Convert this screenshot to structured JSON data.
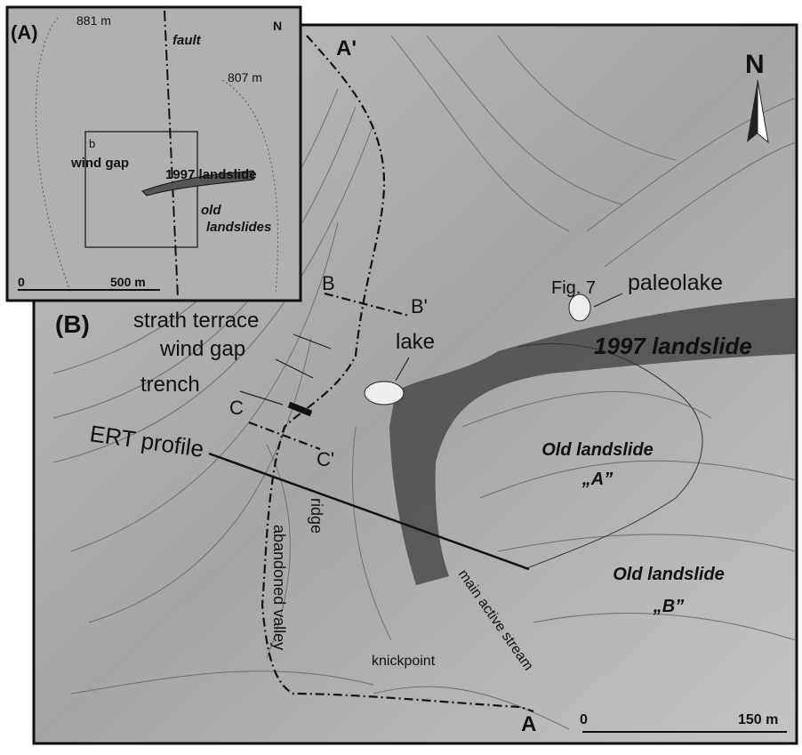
{
  "inset": {
    "panel_label": "(A)",
    "elevation_1": "881 m",
    "fault": "fault",
    "elevation_2": "807 m",
    "north": "N",
    "box_label": "b",
    "wind_gap": "wind gap",
    "landslide_1997": "1997 landslide",
    "old_landslides_1": "old",
    "old_landslides_2": "landslides",
    "scale_start": "0",
    "scale_end": "500 m"
  },
  "map": {
    "section_a_end": "A'",
    "north": "N",
    "section_b_start": "B",
    "section_b_end": "B'",
    "fig_ref": "Fig. 7",
    "paleolake": "paleolake",
    "panel_label": "(B)",
    "strath_terrace": "strath terrace",
    "wind_gap": "wind gap",
    "lake": "lake",
    "landslide_1997": "1997 landslide",
    "trench": "trench",
    "section_c_start": "C",
    "section_c_end": "C'",
    "ert_profile": "ERT profile",
    "old_landslide_a_1": "Old landslide",
    "old_landslide_a_2": "„A”",
    "ridge": "ridge",
    "abandoned_valley": "abandoned valley",
    "old_landslide_b_1": "Old landslide",
    "old_landslide_b_2": "„B”",
    "main_active_stream": "main active stream",
    "knickpoint": "knickpoint",
    "section_a_start": "A",
    "scale_start": "0",
    "scale_end": "150 m"
  }
}
